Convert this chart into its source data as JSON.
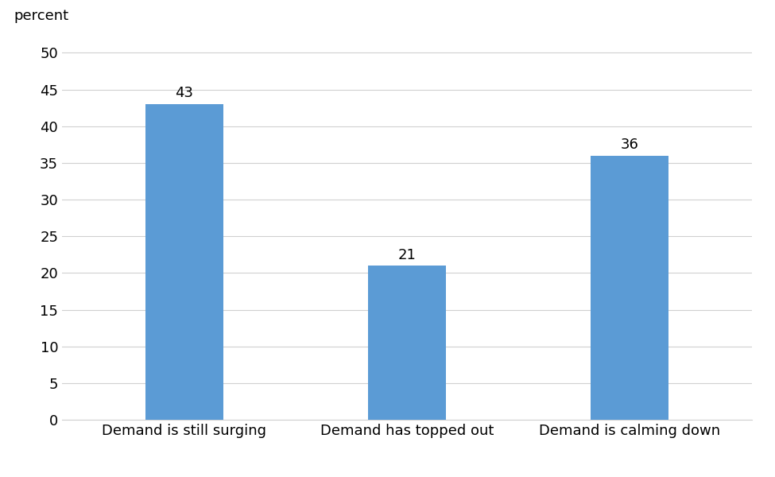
{
  "categories": [
    "Demand is still surging",
    "Demand has topped out",
    "Demand is calming down"
  ],
  "values": [
    43,
    21,
    36
  ],
  "bar_color": "#5b9bd5",
  "ylabel": "percent",
  "ylim": [
    0,
    52
  ],
  "yticks": [
    0,
    5,
    10,
    15,
    20,
    25,
    30,
    35,
    40,
    45,
    50
  ],
  "bar_width": 0.35,
  "label_fontsize": 13,
  "tick_fontsize": 13,
  "annotation_fontsize": 13,
  "background_color": "#ffffff",
  "grid_color": "#d0d0d0"
}
